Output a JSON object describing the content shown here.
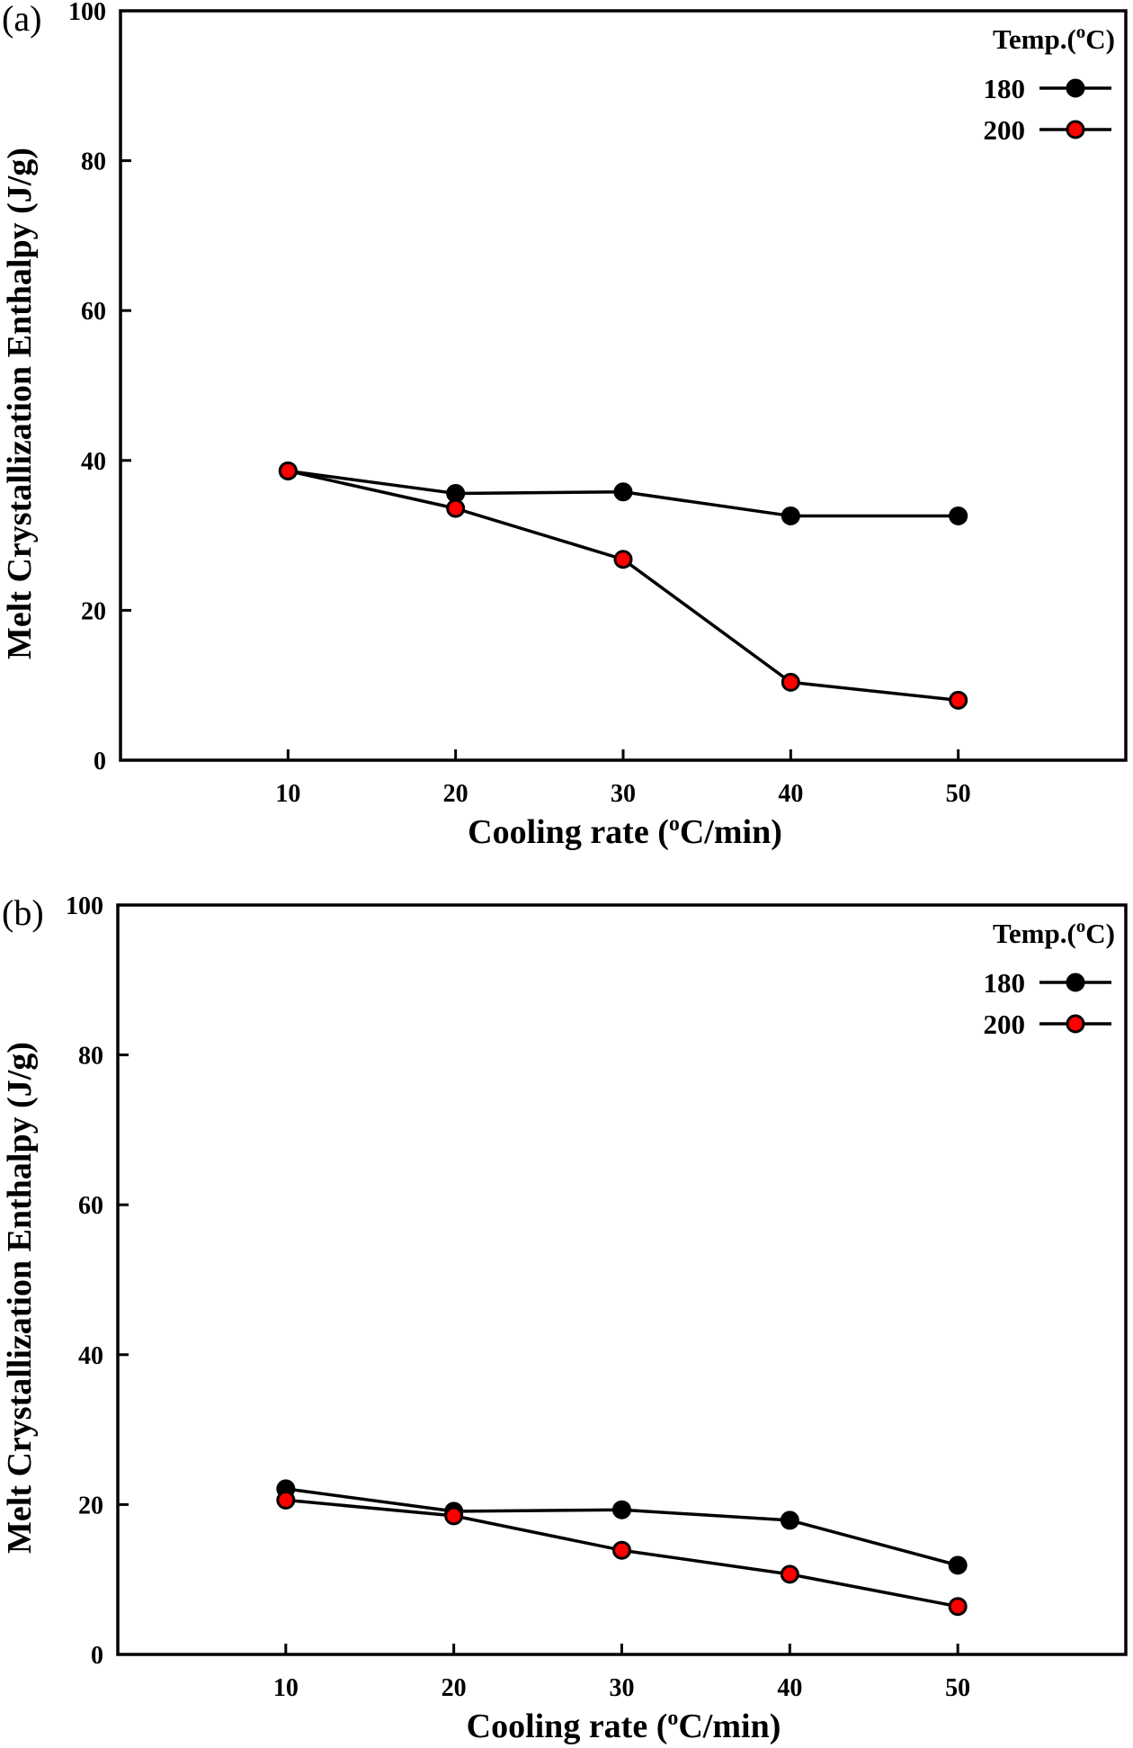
{
  "chart_data": [
    {
      "type": "line",
      "panel_label": "(a)",
      "title": "",
      "xlabel": "Cooling rate (",
      "xlabel_sup": "o",
      "xlabel_tail": "C/min)",
      "ylabel": "Melt Crystallization Enthalpy (J/g)",
      "xlim": [
        0,
        60
      ],
      "ylim": [
        0,
        100
      ],
      "xticks": [
        10,
        20,
        30,
        40,
        50
      ],
      "yticks": [
        0,
        20,
        40,
        60,
        80,
        100
      ],
      "grid": false,
      "legend": {
        "placement": "top-right",
        "title": "Temp.(",
        "title_sup": "o",
        "title_tail": "C)"
      },
      "x": [
        10,
        20,
        30,
        40,
        50
      ],
      "series": [
        {
          "name": "180",
          "values": [
            38.6,
            35.6,
            35.8,
            32.6,
            32.6
          ],
          "marker_color": "#000000",
          "line_color": "#000000"
        },
        {
          "name": "200",
          "values": [
            38.6,
            33.6,
            26.8,
            10.4,
            8.0
          ],
          "marker_color": "#ff0000",
          "line_color": "#000000"
        }
      ]
    },
    {
      "type": "line",
      "panel_label": "(b)",
      "title": "",
      "xlabel": "Cooling rate (",
      "xlabel_sup": "o",
      "xlabel_tail": "C/min)",
      "ylabel": "Melt Crystallization Enthalpy (J/g)",
      "xlim": [
        0,
        60
      ],
      "ylim": [
        0,
        100
      ],
      "xticks": [
        10,
        20,
        30,
        40,
        50
      ],
      "yticks": [
        0,
        20,
        40,
        60,
        80,
        100
      ],
      "grid": false,
      "legend": {
        "placement": "top-right",
        "title": "Temp.(",
        "title_sup": "o",
        "title_tail": "C)"
      },
      "x": [
        10,
        20,
        30,
        40,
        50
      ],
      "series": [
        {
          "name": "180",
          "values": [
            22.1,
            19.1,
            19.3,
            17.9,
            11.9
          ],
          "marker_color": "#000000",
          "line_color": "#000000"
        },
        {
          "name": "200",
          "values": [
            20.6,
            18.5,
            13.9,
            10.7,
            6.4
          ],
          "marker_color": "#ff0000",
          "line_color": "#000000"
        }
      ]
    }
  ]
}
